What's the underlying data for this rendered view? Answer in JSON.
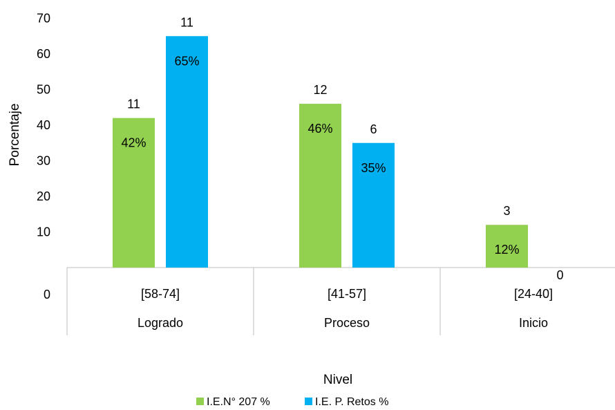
{
  "chart_data": {
    "type": "bar",
    "ylabel": "Porcentaje",
    "xlabel": "Nivel",
    "ylim": [
      0,
      70
    ],
    "yticks": [
      10,
      20,
      30,
      40,
      50,
      60,
      70
    ],
    "y_zero_label": "0",
    "grid": false,
    "legend_position": "bottom",
    "categories": [
      "[58-74]",
      "[41-57]",
      "[24-40]"
    ],
    "groups": [
      "Logrado",
      "Proceso",
      "Inicio"
    ],
    "series": [
      {
        "name": "I.E.N° 207 %",
        "color": "#92d050",
        "values": [
          42,
          46,
          12
        ],
        "value_labels": [
          "42%",
          "46%",
          "12%"
        ],
        "count_labels": [
          "11",
          "12",
          "3"
        ]
      },
      {
        "name": "I.E. P. Retos %",
        "color": "#00b0f0",
        "values": [
          65,
          35,
          0
        ],
        "value_labels": [
          "65%",
          "35%",
          ""
        ],
        "count_labels": [
          "11",
          "6",
          "0"
        ]
      }
    ]
  }
}
